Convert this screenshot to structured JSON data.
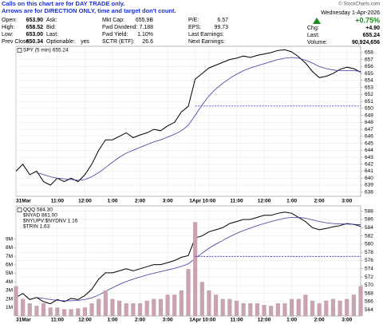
{
  "quote": {
    "notes": [
      "Calls on this chart are for DAY TRADE only.",
      "Arrows are for DIRECTION ONLY, time and target don't count."
    ],
    "watermark": "© StockCharts.com",
    "date": "Wednesday 1-Apr-2026",
    "change_percent": "+0.75%",
    "columns": [
      [
        {
          "label": "Open:",
          "value": "653.90"
        },
        {
          "label": "High:",
          "value": "658.52"
        },
        {
          "label": "Low:",
          "value": "653.00"
        },
        {
          "label": "Prev Close:",
          "value": "650.34"
        }
      ],
      [
        {
          "label": "Ask:"
        },
        {
          "label": "Bid:"
        },
        {
          "label": "Last:"
        },
        {
          "label": "Optionable:",
          "value": "yes"
        }
      ],
      [
        {
          "label": "Mkt Cap:",
          "value": "655.9B"
        },
        {
          "label": "Fwd Dividend:",
          "value": "7.188"
        },
        {
          "label": "Fwd Yield:",
          "value": "1.10%"
        },
        {
          "label": "SCTR (ETF):",
          "value": "26.6"
        }
      ],
      [
        {
          "label": "P/E:",
          "value": "6.57"
        },
        {
          "label": "EPS:",
          "value": "99.73"
        },
        {
          "label": "Last Earnings:"
        },
        {
          "label": "Next Earnings:"
        }
      ],
      [
        {
          "label": "Chg:",
          "value": "+4.90"
        },
        {
          "label": "Last:",
          "value": "655.24"
        },
        {
          "label": "Volume:",
          "value": "90,924,656"
        }
      ]
    ]
  },
  "chart_data": [
    {
      "type": "line",
      "categories": [
        "31Mar",
        null,
        null,
        null,
        null,
        null,
        "11:00",
        null,
        null,
        null,
        "12:00",
        null,
        null,
        null,
        "1:00",
        null,
        null,
        null,
        "2:00",
        null,
        null,
        null,
        "3:00",
        null,
        null,
        null,
        "1Apr",
        null,
        "10:00",
        null,
        null,
        null,
        "11:00",
        null,
        null,
        null,
        "12:00",
        null,
        null,
        null,
        "1:00",
        null,
        null,
        null,
        "2:00",
        null,
        null,
        null,
        "3:00",
        null,
        null
      ],
      "series": [
        {
          "name": "SPY (5 min) 655.24",
          "color": "#000000",
          "values": [
            641.0,
            642.0,
            640.5,
            641.0,
            639.5,
            639.0,
            640.0,
            639.5,
            640.0,
            639.5,
            640.5,
            642.0,
            644.0,
            645.5,
            645.5,
            646.0,
            646.5,
            645.8,
            646.2,
            646.5,
            647.0,
            646.8,
            647.5,
            648.0,
            649.5,
            650.3,
            654.2,
            655.0,
            655.8,
            656.2,
            656.6,
            657.0,
            657.2,
            657.5,
            657.3,
            657.6,
            657.8,
            658.0,
            658.3,
            658.4,
            658.1,
            657.4,
            656.5,
            655.3,
            654.4,
            654.6,
            655.0,
            655.6,
            655.9,
            655.7,
            655.2
          ]
        },
        {
          "color": "#3a3aa0",
          "values": [
            null,
            null,
            null,
            640.8,
            640.5,
            640.2,
            640.0,
            639.9,
            639.8,
            639.7,
            639.8,
            640.2,
            640.8,
            641.5,
            642.3,
            643.0,
            643.6,
            644.0,
            644.4,
            644.8,
            645.2,
            645.5,
            645.9,
            646.3,
            646.8,
            647.6,
            649.0,
            650.5,
            651.8,
            652.8,
            653.6,
            654.3,
            654.9,
            655.4,
            655.8,
            656.1,
            656.4,
            656.7,
            657.0,
            657.2,
            657.3,
            657.2,
            656.9,
            656.5,
            656.0,
            655.7,
            655.5,
            655.4,
            655.4,
            655.4,
            655.3
          ]
        }
      ],
      "reference_line": 650.34,
      "ylim": [
        637.4,
        658.9
      ],
      "yticks": [
        638,
        639,
        640,
        641,
        642,
        643,
        644,
        645,
        646,
        647,
        648,
        649,
        650,
        651,
        652,
        653,
        654,
        655,
        656,
        657,
        658
      ],
      "grid": true
    },
    {
      "type": "line",
      "categories": [
        "31Mar",
        null,
        null,
        null,
        null,
        null,
        "11:00",
        null,
        null,
        null,
        "12:00",
        null,
        null,
        null,
        "1:00",
        null,
        null,
        null,
        "2:00",
        null,
        null,
        null,
        "3:00",
        null,
        null,
        null,
        "1Apr",
        null,
        "10:00",
        null,
        null,
        null,
        "11:00",
        null,
        null,
        null,
        "12:00",
        null,
        null,
        null,
        "1:00",
        null,
        null,
        null,
        "2:00",
        null,
        null,
        null,
        "3:00",
        null,
        null
      ],
      "series": [
        {
          "name": "QQQ 584.30",
          "color": "#000000",
          "values": [
            567.0,
            568.0,
            566.5,
            567.0,
            566.0,
            565.5,
            566.5,
            566.0,
            566.8,
            566.5,
            567.5,
            569.0,
            571.5,
            573.0,
            573.0,
            573.5,
            574.0,
            573.5,
            574.0,
            574.5,
            575.0,
            575.0,
            575.5,
            576.0,
            576.8,
            577.2,
            581.5,
            582.0,
            583.0,
            583.5,
            584.0,
            585.0,
            585.5,
            586.0,
            586.0,
            586.5,
            587.0,
            587.0,
            587.5,
            587.8,
            587.5,
            586.5,
            585.5,
            584.0,
            583.5,
            583.8,
            584.2,
            584.5,
            585.0,
            584.8,
            584.3
          ]
        },
        {
          "color": "#3a3aa0",
          "values": [
            null,
            null,
            null,
            567.0,
            566.8,
            566.5,
            566.3,
            566.2,
            566.2,
            566.3,
            566.5,
            566.9,
            567.6,
            568.5,
            569.4,
            570.2,
            570.9,
            571.5,
            572.0,
            572.5,
            572.9,
            573.3,
            573.7,
            574.1,
            574.6,
            575.2,
            576.5,
            577.8,
            579.0,
            580.0,
            580.9,
            581.8,
            582.6,
            583.3,
            583.9,
            584.5,
            585.0,
            585.5,
            585.9,
            586.3,
            586.5,
            586.5,
            586.3,
            585.9,
            585.5,
            585.2,
            585.0,
            584.9,
            584.9,
            584.8,
            584.7
          ]
        },
        {
          "color": "#c9a3ad",
          "axis": "y2",
          "values": [
            3.5,
            2.0,
            1.5,
            1.2,
            1.5,
            1.0,
            1.0,
            0.8,
            0.8,
            0.9,
            1.0,
            1.5,
            2.0,
            3.0,
            2.0,
            1.8,
            1.5,
            1.5,
            1.5,
            1.8,
            2.0,
            2.0,
            2.5,
            2.5,
            3.0,
            5.5,
            11.0,
            4.0,
            3.0,
            2.5,
            2.0,
            2.0,
            1.8,
            1.5,
            1.5,
            1.5,
            1.3,
            1.2,
            1.5,
            1.5,
            2.0,
            2.0,
            2.5,
            1.8,
            1.5,
            1.8,
            2.0,
            1.8,
            2.0,
            2.5,
            3.5
          ]
        }
      ],
      "overlays": [
        "$NYAD 861.00",
        "$NYUPV:$NYDNV 1.16",
        "$TRIN 1.63"
      ],
      "reference_line": 577.0,
      "ylim": [
        562.5,
        589.3
      ],
      "yticks": [
        564,
        566,
        568,
        570,
        572,
        574,
        576,
        578,
        580,
        582,
        584,
        586,
        588
      ],
      "y2lim": [
        0,
        12.9
      ],
      "y2ticks": [
        {
          "value": 1,
          "label": "1M"
        },
        {
          "value": 2,
          "label": "2M"
        },
        {
          "value": 3,
          "label": "3M"
        },
        {
          "value": 4,
          "label": "4M"
        },
        {
          "value": 5,
          "label": "5M"
        },
        {
          "value": 6,
          "label": "6M"
        },
        {
          "value": 7,
          "label": "7M"
        },
        {
          "value": 8,
          "label": "8M"
        },
        {
          "value": 9,
          "label": "9M"
        }
      ],
      "grid": true
    }
  ]
}
